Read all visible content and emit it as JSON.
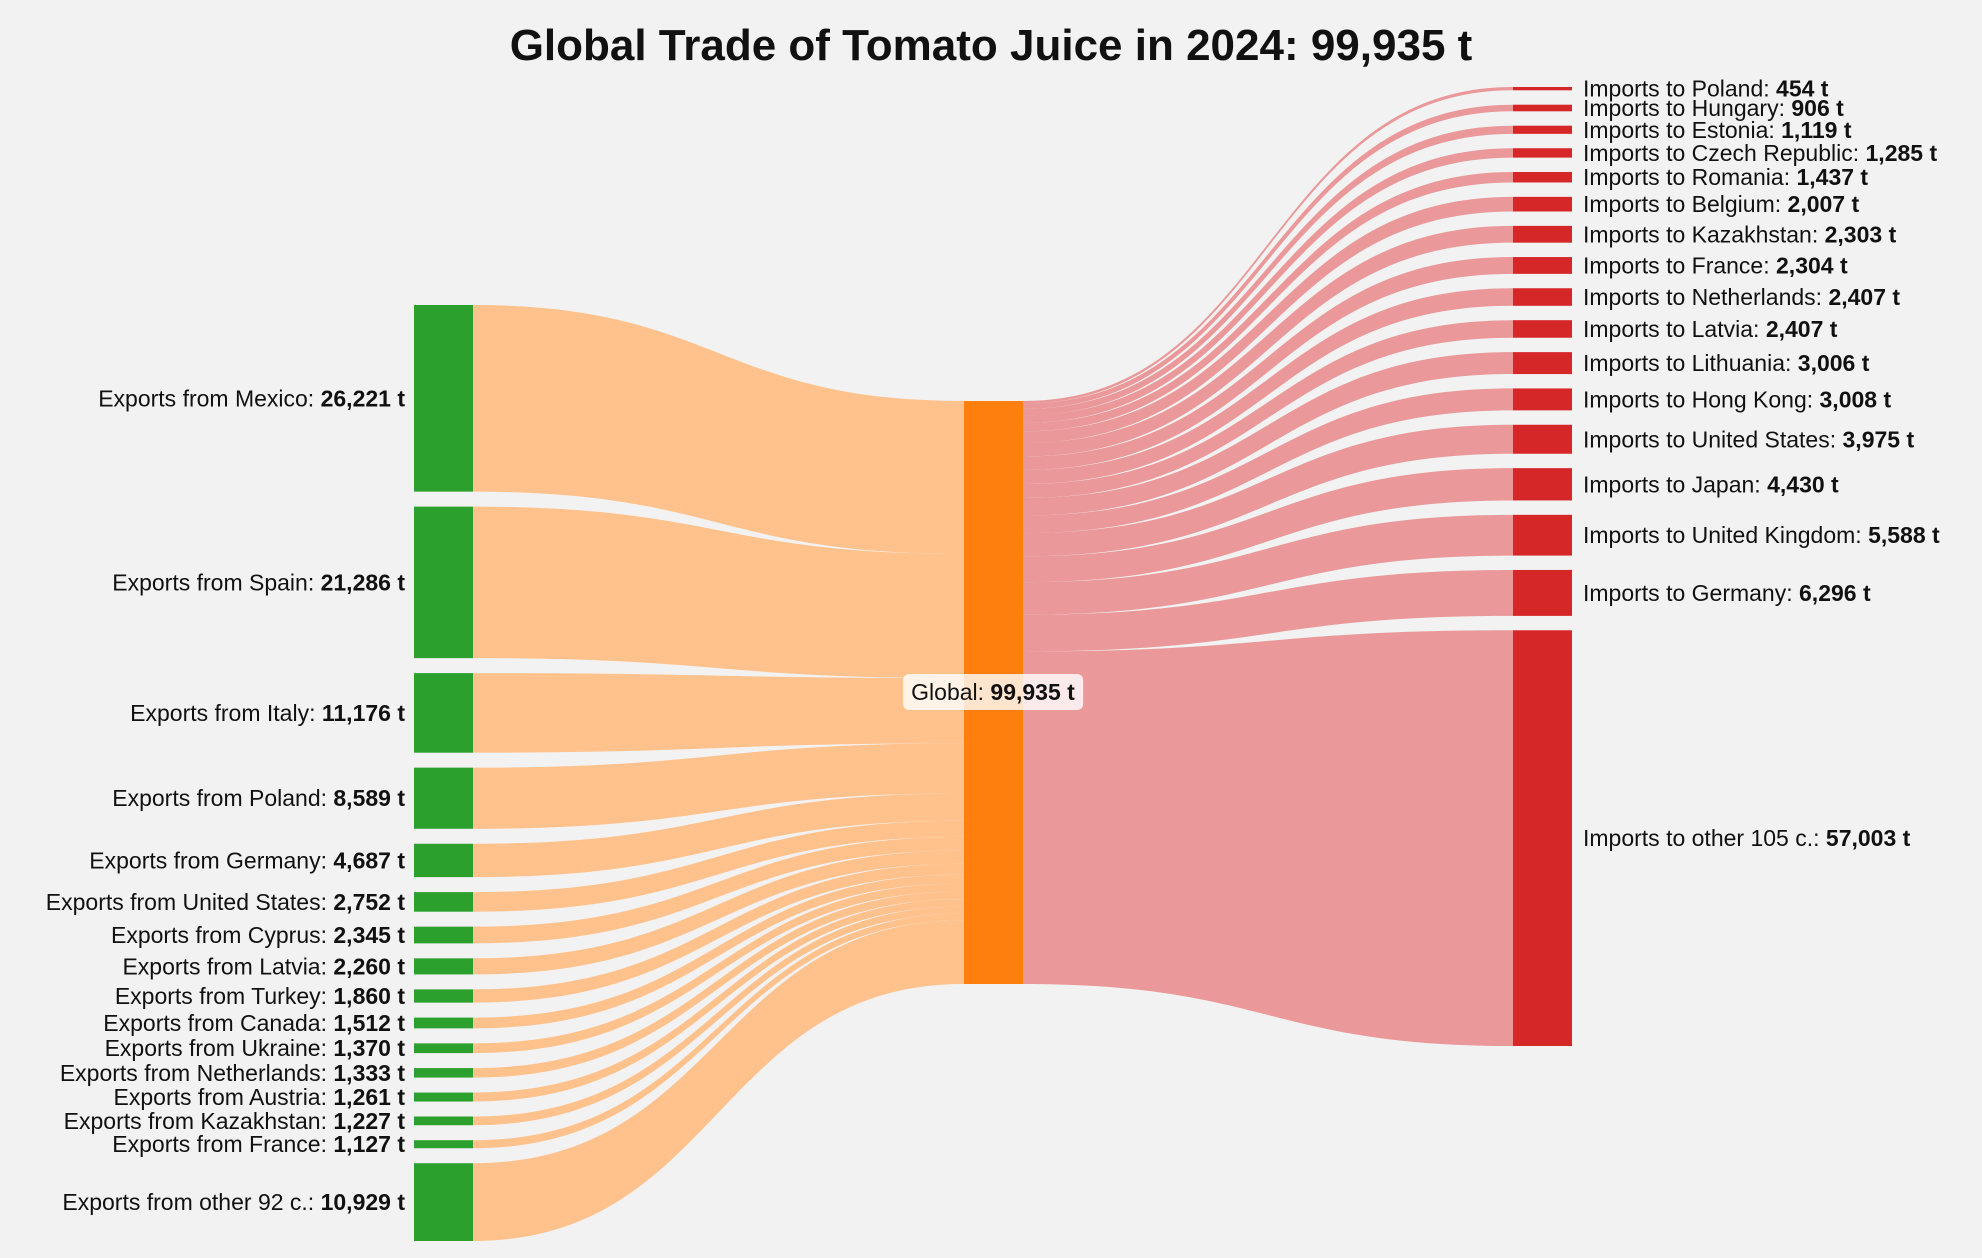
{
  "chart_data": {
    "type": "sankey",
    "title": "Global Trade of Tomato Juice in 2024: 99,935 t",
    "unit": "t",
    "center": {
      "name": "Global",
      "value": 99935
    },
    "sources": [
      {
        "name": "Exports from Mexico",
        "value": 26221
      },
      {
        "name": "Exports from Spain",
        "value": 21286
      },
      {
        "name": "Exports from Italy",
        "value": 11176
      },
      {
        "name": "Exports from Poland",
        "value": 8589
      },
      {
        "name": "Exports from Germany",
        "value": 4687
      },
      {
        "name": "Exports from United States",
        "value": 2752
      },
      {
        "name": "Exports from Cyprus",
        "value": 2345
      },
      {
        "name": "Exports from Latvia",
        "value": 2260
      },
      {
        "name": "Exports from Turkey",
        "value": 1860
      },
      {
        "name": "Exports from Canada",
        "value": 1512
      },
      {
        "name": "Exports from Ukraine",
        "value": 1370
      },
      {
        "name": "Exports from Netherlands",
        "value": 1333
      },
      {
        "name": "Exports from Austria",
        "value": 1261
      },
      {
        "name": "Exports from Kazakhstan",
        "value": 1227
      },
      {
        "name": "Exports from France",
        "value": 1127
      },
      {
        "name": "Exports from other 92 c.",
        "value": 10929
      }
    ],
    "targets": [
      {
        "name": "Imports to Poland",
        "value": 454
      },
      {
        "name": "Imports to Hungary",
        "value": 906
      },
      {
        "name": "Imports to Estonia",
        "value": 1119
      },
      {
        "name": "Imports to Czech Republic",
        "value": 1285
      },
      {
        "name": "Imports to Romania",
        "value": 1437
      },
      {
        "name": "Imports to Belgium",
        "value": 2007
      },
      {
        "name": "Imports to Kazakhstan",
        "value": 2303
      },
      {
        "name": "Imports to France",
        "value": 2304
      },
      {
        "name": "Imports to Netherlands",
        "value": 2407
      },
      {
        "name": "Imports to Latvia",
        "value": 2407
      },
      {
        "name": "Imports to Lithuania",
        "value": 3006
      },
      {
        "name": "Imports to Hong Kong",
        "value": 3008
      },
      {
        "name": "Imports to United States",
        "value": 3975
      },
      {
        "name": "Imports to Japan",
        "value": 4430
      },
      {
        "name": "Imports to United Kingdom",
        "value": 5588
      },
      {
        "name": "Imports to Germany",
        "value": 6296
      },
      {
        "name": "Imports to other 105 c.",
        "value": 57003
      }
    ],
    "colors": {
      "source_node": "#2ca02c",
      "source_link": "#ffbf87",
      "center_node": "#ff7f0e",
      "target_node": "#d62728",
      "target_link": "#e99294",
      "background": "#f2f2f2"
    }
  }
}
